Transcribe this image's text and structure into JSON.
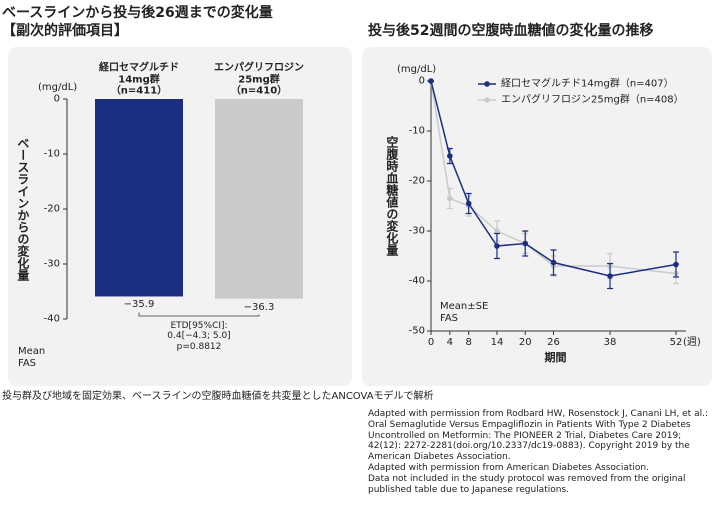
{
  "chart_data": [
    {
      "type": "bar",
      "title": "ベースラインから投与後26週までの変化量",
      "subtitle": "【副次的評価項目】",
      "ylabel": "ベースラインからの変化量",
      "unit": "(mg/dL)",
      "categories": [
        "経口セマグルチド\n14mg群\n（n=411）",
        "エンパグリフロジン\n25mg群\n（n=410）"
      ],
      "values": [
        -35.9,
        -36.3
      ],
      "value_labels": [
        "−35.9",
        "−36.3"
      ],
      "colors": [
        "#1b2e80",
        "#c9cacc"
      ],
      "ylim": [
        -40,
        0
      ],
      "yticks": [
        0,
        -10,
        -20,
        -30,
        -40
      ],
      "annotation": "ETD[95%CI]:\n0.4[−4.3; 5.0]\np=0.8812",
      "note": "Mean\nFAS",
      "grid": false
    },
    {
      "type": "line",
      "title": "投与後52週間の空腹時血糖値の変化量の推移",
      "ylabel": "空腹時血糖値の変化量",
      "unit": "(mg/dL)",
      "xlabel": "期間",
      "x_unit": "(週)",
      "x": [
        0,
        4,
        8,
        14,
        20,
        26,
        38,
        52
      ],
      "series": [
        {
          "name": "経口セマグルチド14mg群（n=407）",
          "color": "#1b2e80",
          "values": [
            0,
            -15,
            -24.5,
            -33,
            -32.5,
            -36.3,
            -39,
            -36.7
          ],
          "errors": [
            0,
            1.5,
            2,
            2.5,
            2.5,
            2.5,
            2.5,
            2.5
          ]
        },
        {
          "name": "エンパグリフロジン25mg群（n=408）",
          "color": "#c9cacc",
          "values": [
            0,
            -23.5,
            -25,
            -30,
            -32.5,
            -37,
            -37,
            -38.5
          ],
          "errors": [
            0,
            2,
            2,
            2,
            2,
            2,
            2.5,
            2
          ]
        }
      ],
      "xlim": [
        0,
        52
      ],
      "xticks": [
        0,
        4,
        8,
        14,
        20,
        26,
        38,
        52
      ],
      "ylim": [
        -50,
        0
      ],
      "yticks": [
        0,
        -10,
        -20,
        -30,
        -40,
        -50
      ],
      "note": "Mean±SE\nFAS",
      "grid": false
    }
  ],
  "footnote": "投与群及び地域を固定効果、ベースラインの空腹時血糖値を共変量としたANCOVAモデルで解析",
  "citation": "Adapted with permission from Rodbard HW, Rosenstock J, Canani LH, et al.: Oral Semaglutide Versus Empagliflozin in Patients With Type 2 Diabetes Uncontrolled on Metformin: The PIONEER 2 Trial, Diabetes Care 2019; 42(12): 2272-2281(doi.org/10.2337/dc19-0883). Copyright 2019 by the American Diabetes Association.\nAdapted with permission from American Diabetes Association.\nData not included in the study protocol was removed from the original published table due to Japanese regulations."
}
